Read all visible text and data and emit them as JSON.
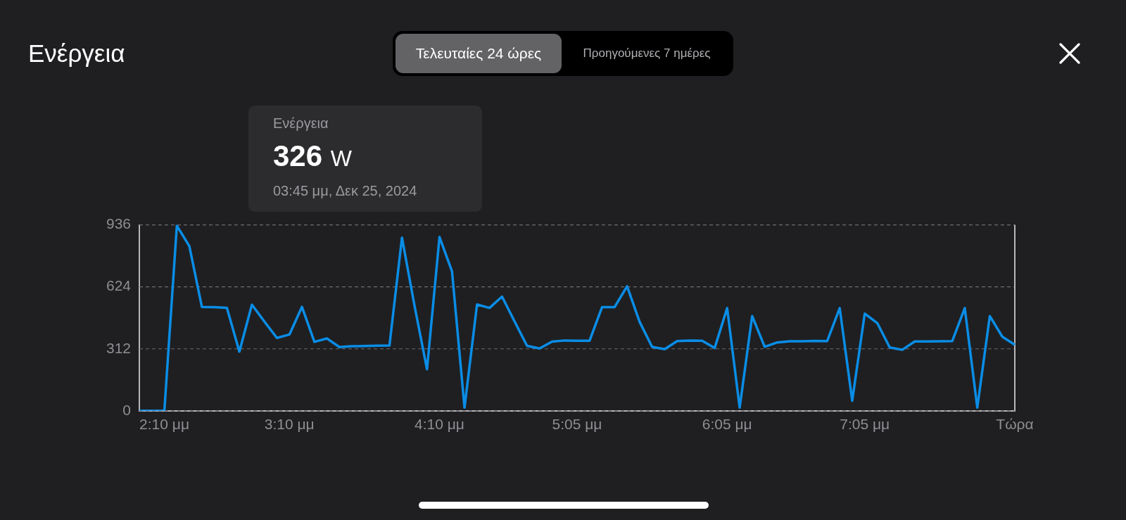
{
  "chart_data": {
    "type": "line",
    "title": "Ενέργεια",
    "categories": [
      null,
      null,
      "2:10 μμ",
      null,
      null,
      null,
      null,
      null,
      null,
      null,
      null,
      null,
      "3:10 μμ",
      null,
      null,
      null,
      null,
      null,
      null,
      null,
      null,
      null,
      null,
      null,
      "4:10 μμ",
      null,
      null,
      null,
      null,
      null,
      null,
      null,
      null,
      null,
      null,
      "5:05 μμ",
      null,
      null,
      null,
      null,
      null,
      null,
      null,
      null,
      null,
      null,
      null,
      "6:05 μμ",
      null,
      null,
      null,
      null,
      null,
      null,
      null,
      null,
      null,
      null,
      "7:05 μμ",
      null,
      null,
      null,
      null,
      null,
      null,
      null,
      null,
      null,
      null,
      null,
      "Τώρα"
    ],
    "values": [
      0,
      0,
      0,
      932,
      829,
      523,
      522,
      518,
      298,
      534,
      449,
      367,
      384,
      523,
      347,
      364,
      321,
      325,
      326,
      328,
      329,
      872,
      530,
      209,
      875,
      702,
      16,
      535,
      518,
      575,
      450,
      327,
      314,
      348,
      354,
      353,
      353,
      522,
      522,
      627,
      448,
      322,
      310,
      351,
      354,
      353,
      316,
      517,
      16,
      477,
      322,
      344,
      350,
      350,
      352,
      351,
      517,
      51,
      489,
      442,
      319,
      307,
      349,
      349,
      350,
      351,
      517,
      16,
      477,
      373,
      332
    ],
    "color": "#0a8de6",
    "ylim": [
      0,
      936
    ],
    "yticks": [
      0,
      312,
      624,
      936
    ],
    "grid": "y",
    "annotations": [
      "Τελευταίες 24 ώρες",
      "Προηγούμενες 7 ημέρες",
      "Ενέργεια",
      "326 W",
      "03:45 μμ, Δεκ 25, 2024"
    ]
  }
}
